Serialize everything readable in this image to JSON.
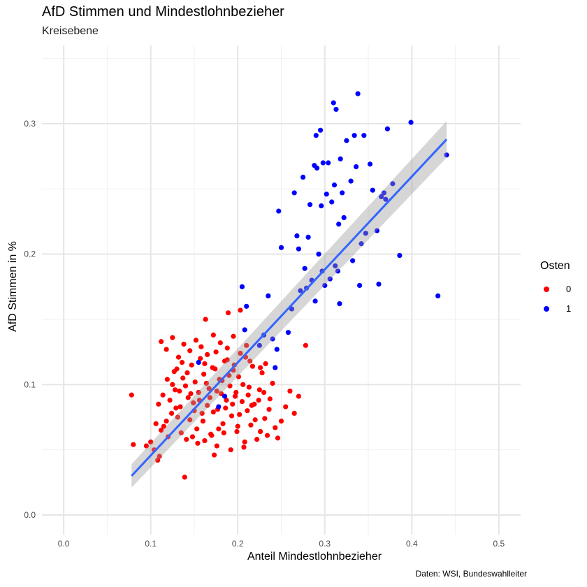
{
  "chart_data": {
    "type": "scatter",
    "title": "AfD Stimmen und Mindestlohnbezieher",
    "subtitle": "Kreisebene",
    "xlabel": "Anteil Mindestlohnbezieher",
    "ylabel": "AfD Stimmen in %",
    "caption": "Daten: WSI, Bundeswahlleiter",
    "xlim": [
      -0.025,
      0.525
    ],
    "ylim": [
      -0.015,
      0.36
    ],
    "x_ticks": [
      "0.0",
      "0.1",
      "0.2",
      "0.3",
      "0.4",
      "0.5"
    ],
    "y_ticks": [
      "0.0",
      "0.1",
      "0.2",
      "0.3"
    ],
    "grid": true,
    "legend": {
      "title": "Osten",
      "position": "right",
      "entries": [
        {
          "label": "0",
          "color": "#FF0000"
        },
        {
          "label": "1",
          "color": "#0000FF"
        }
      ]
    },
    "regression": {
      "color": "#3366FF",
      "x": [
        0.078,
        0.44
      ],
      "y": [
        0.03,
        0.288
      ],
      "band_lower": [
        0.021,
        0.274
      ],
      "band_upper": [
        0.039,
        0.302
      ]
    },
    "series": [
      {
        "name": "0",
        "color": "#FF0000",
        "points": [
          [
            0.078,
            0.092
          ],
          [
            0.08,
            0.054
          ],
          [
            0.095,
            0.053
          ],
          [
            0.1,
            0.056
          ],
          [
            0.104,
            0.05
          ],
          [
            0.108,
            0.042
          ],
          [
            0.11,
            0.045
          ],
          [
            0.112,
            0.065
          ],
          [
            0.115,
            0.068
          ],
          [
            0.118,
            0.072
          ],
          [
            0.12,
            0.06
          ],
          [
            0.122,
            0.088
          ],
          [
            0.125,
            0.1
          ],
          [
            0.127,
            0.11
          ],
          [
            0.129,
            0.082
          ],
          [
            0.131,
            0.075
          ],
          [
            0.133,
            0.095
          ],
          [
            0.135,
            0.063
          ],
          [
            0.137,
            0.105
          ],
          [
            0.139,
            0.029
          ],
          [
            0.141,
            0.058
          ],
          [
            0.143,
            0.09
          ],
          [
            0.145,
            0.073
          ],
          [
            0.147,
            0.115
          ],
          [
            0.149,
            0.086
          ],
          [
            0.151,
            0.102
          ],
          [
            0.153,
            0.066
          ],
          [
            0.155,
            0.094
          ],
          [
            0.157,
            0.12
          ],
          [
            0.159,
            0.078
          ],
          [
            0.161,
            0.108
          ],
          [
            0.163,
            0.15
          ],
          [
            0.165,
            0.084
          ],
          [
            0.167,
            0.097
          ],
          [
            0.169,
            0.062
          ],
          [
            0.171,
            0.113
          ],
          [
            0.173,
            0.046
          ],
          [
            0.175,
            0.125
          ],
          [
            0.177,
            0.081
          ],
          [
            0.179,
            0.104
          ],
          [
            0.181,
            0.093
          ],
          [
            0.183,
            0.07
          ],
          [
            0.185,
            0.118
          ],
          [
            0.187,
            0.088
          ],
          [
            0.189,
            0.155
          ],
          [
            0.191,
            0.099
          ],
          [
            0.193,
            0.076
          ],
          [
            0.195,
            0.111
          ],
          [
            0.197,
            0.091
          ],
          [
            0.199,
            0.064
          ],
          [
            0.201,
            0.106
          ],
          [
            0.203,
            0.157
          ],
          [
            0.205,
            0.087
          ],
          [
            0.207,
            0.052
          ],
          [
            0.209,
            0.121
          ],
          [
            0.211,
            0.08
          ],
          [
            0.213,
            0.098
          ],
          [
            0.215,
            0.069
          ],
          [
            0.217,
            0.114
          ],
          [
            0.219,
            0.085
          ],
          [
            0.222,
            0.058
          ],
          [
            0.225,
            0.096
          ],
          [
            0.228,
            0.109
          ],
          [
            0.231,
            0.074
          ],
          [
            0.234,
            0.061
          ],
          [
            0.237,
            0.089
          ],
          [
            0.24,
            0.101
          ],
          [
            0.243,
            0.067
          ],
          [
            0.246,
            0.059
          ],
          [
            0.25,
            0.072
          ],
          [
            0.255,
            0.083
          ],
          [
            0.26,
            0.095
          ],
          [
            0.265,
            0.078
          ],
          [
            0.27,
            0.091
          ],
          [
            0.278,
            0.13
          ],
          [
            0.112,
            0.133
          ],
          [
            0.118,
            0.127
          ],
          [
            0.125,
            0.136
          ],
          [
            0.132,
            0.121
          ],
          [
            0.138,
            0.131
          ],
          [
            0.145,
            0.126
          ],
          [
            0.152,
            0.134
          ],
          [
            0.158,
            0.129
          ],
          [
            0.165,
            0.123
          ],
          [
            0.172,
            0.138
          ],
          [
            0.18,
            0.132
          ],
          [
            0.188,
            0.128
          ],
          [
            0.195,
            0.137
          ],
          [
            0.203,
            0.124
          ],
          [
            0.21,
            0.13
          ],
          [
            0.106,
            0.07
          ],
          [
            0.109,
            0.085
          ],
          [
            0.114,
            0.092
          ],
          [
            0.119,
            0.104
          ],
          [
            0.124,
            0.078
          ],
          [
            0.128,
            0.096
          ],
          [
            0.134,
            0.083
          ],
          [
            0.14,
            0.099
          ],
          [
            0.146,
            0.093
          ],
          [
            0.15,
            0.08
          ],
          [
            0.156,
            0.088
          ],
          [
            0.16,
            0.072
          ],
          [
            0.164,
            0.101
          ],
          [
            0.168,
            0.09
          ],
          [
            0.172,
            0.079
          ],
          [
            0.176,
            0.095
          ],
          [
            0.178,
            0.066
          ],
          [
            0.182,
            0.103
          ],
          [
            0.186,
            0.082
          ],
          [
            0.19,
            0.107
          ],
          [
            0.194,
            0.085
          ],
          [
            0.198,
            0.094
          ],
          [
            0.202,
            0.077
          ],
          [
            0.206,
            0.1
          ],
          [
            0.212,
            0.092
          ],
          [
            0.216,
            0.084
          ],
          [
            0.22,
            0.073
          ],
          [
            0.224,
            0.088
          ],
          [
            0.23,
            0.094
          ],
          [
            0.236,
            0.081
          ],
          [
            0.148,
            0.06
          ],
          [
            0.154,
            0.055
          ],
          [
            0.162,
            0.057
          ],
          [
            0.17,
            0.061
          ],
          [
            0.176,
            0.053
          ],
          [
            0.184,
            0.063
          ],
          [
            0.192,
            0.05
          ],
          [
            0.2,
            0.068
          ],
          [
            0.208,
            0.056
          ],
          [
            0.226,
            0.064
          ],
          [
            0.13,
            0.112
          ],
          [
            0.136,
            0.117
          ],
          [
            0.142,
            0.109
          ],
          [
            0.162,
            0.116
          ],
          [
            0.174,
            0.112
          ],
          [
            0.188,
            0.119
          ],
          [
            0.196,
            0.115
          ],
          [
            0.214,
            0.118
          ],
          [
            0.226,
            0.113
          ],
          [
            0.232,
            0.116
          ]
        ]
      },
      {
        "name": "1",
        "color": "#0000FF",
        "points": [
          [
            0.155,
            0.117
          ],
          [
            0.178,
            0.083
          ],
          [
            0.185,
            0.091
          ],
          [
            0.205,
            0.175
          ],
          [
            0.208,
            0.142
          ],
          [
            0.21,
            0.16
          ],
          [
            0.225,
            0.13
          ],
          [
            0.23,
            0.138
          ],
          [
            0.235,
            0.168
          ],
          [
            0.24,
            0.135
          ],
          [
            0.243,
            0.113
          ],
          [
            0.245,
            0.127
          ],
          [
            0.247,
            0.233
          ],
          [
            0.25,
            0.205
          ],
          [
            0.258,
            0.14
          ],
          [
            0.262,
            0.158
          ],
          [
            0.265,
            0.247
          ],
          [
            0.268,
            0.214
          ],
          [
            0.27,
            0.204
          ],
          [
            0.272,
            0.172
          ],
          [
            0.275,
            0.259
          ],
          [
            0.277,
            0.189
          ],
          [
            0.279,
            0.174
          ],
          [
            0.281,
            0.213
          ],
          [
            0.283,
            0.238
          ],
          [
            0.285,
            0.18
          ],
          [
            0.288,
            0.268
          ],
          [
            0.289,
            0.164
          ],
          [
            0.29,
            0.291
          ],
          [
            0.291,
            0.266
          ],
          [
            0.293,
            0.2
          ],
          [
            0.295,
            0.295
          ],
          [
            0.296,
            0.237
          ],
          [
            0.297,
            0.187
          ],
          [
            0.298,
            0.27
          ],
          [
            0.3,
            0.176
          ],
          [
            0.302,
            0.246
          ],
          [
            0.304,
            0.27
          ],
          [
            0.306,
            0.181
          ],
          [
            0.308,
            0.24
          ],
          [
            0.31,
            0.316
          ],
          [
            0.311,
            0.253
          ],
          [
            0.312,
            0.191
          ],
          [
            0.313,
            0.311
          ],
          [
            0.315,
            0.187
          ],
          [
            0.316,
            0.223
          ],
          [
            0.317,
            0.162
          ],
          [
            0.318,
            0.273
          ],
          [
            0.32,
            0.247
          ],
          [
            0.322,
            0.228
          ],
          [
            0.325,
            0.287
          ],
          [
            0.33,
            0.256
          ],
          [
            0.332,
            0.195
          ],
          [
            0.334,
            0.291
          ],
          [
            0.336,
            0.267
          ],
          [
            0.338,
            0.323
          ],
          [
            0.34,
            0.176
          ],
          [
            0.342,
            0.208
          ],
          [
            0.345,
            0.291
          ],
          [
            0.347,
            0.216
          ],
          [
            0.352,
            0.269
          ],
          [
            0.355,
            0.249
          ],
          [
            0.36,
            0.218
          ],
          [
            0.362,
            0.177
          ],
          [
            0.365,
            0.244
          ],
          [
            0.368,
            0.247
          ],
          [
            0.37,
            0.242
          ],
          [
            0.372,
            0.296
          ],
          [
            0.378,
            0.254
          ],
          [
            0.386,
            0.199
          ],
          [
            0.399,
            0.301
          ],
          [
            0.43,
            0.168
          ],
          [
            0.44,
            0.276
          ]
        ]
      }
    ]
  }
}
